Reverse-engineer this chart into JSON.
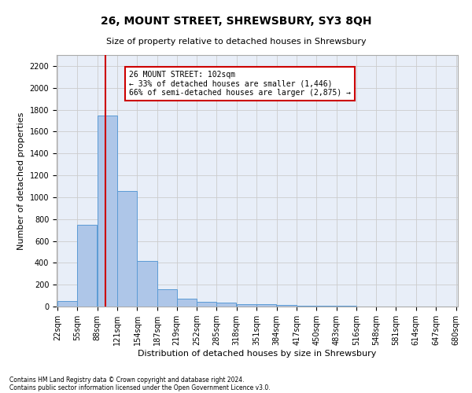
{
  "title": "26, MOUNT STREET, SHREWSBURY, SY3 8QH",
  "subtitle": "Size of property relative to detached houses in Shrewsbury",
  "xlabel": "Distribution of detached houses by size in Shrewsbury",
  "ylabel": "Number of detached properties",
  "footnote1": "Contains HM Land Registry data © Crown copyright and database right 2024.",
  "footnote2": "Contains public sector information licensed under the Open Government Licence v3.0.",
  "bar_color": "#aec6e8",
  "bar_edge_color": "#5b9bd5",
  "grid_color": "#cccccc",
  "background_color": "#e8eef8",
  "property_line_x": 102,
  "bin_edges": [
    22,
    55,
    88,
    121,
    154,
    187,
    219,
    252,
    285,
    318,
    351,
    384,
    417,
    450,
    483,
    516,
    548,
    581,
    614,
    647,
    680
  ],
  "bar_heights": [
    50,
    750,
    1750,
    1060,
    415,
    155,
    75,
    40,
    35,
    25,
    20,
    15,
    10,
    6,
    4,
    3,
    2,
    2,
    1,
    1
  ],
  "ylim": [
    0,
    2300
  ],
  "yticks": [
    0,
    200,
    400,
    600,
    800,
    1000,
    1200,
    1400,
    1600,
    1800,
    2000,
    2200
  ],
  "annotation_title": "26 MOUNT STREET: 102sqm",
  "annotation_line1": "← 33% of detached houses are smaller (1,446)",
  "annotation_line2": "66% of semi-detached houses are larger (2,875) →",
  "annotation_box_color": "#ffffff",
  "annotation_box_edge": "#cc0000",
  "red_line_color": "#cc0000",
  "title_fontsize": 10,
  "subtitle_fontsize": 8,
  "ylabel_fontsize": 8,
  "xlabel_fontsize": 8,
  "tick_fontsize": 7,
  "annot_fontsize": 7
}
